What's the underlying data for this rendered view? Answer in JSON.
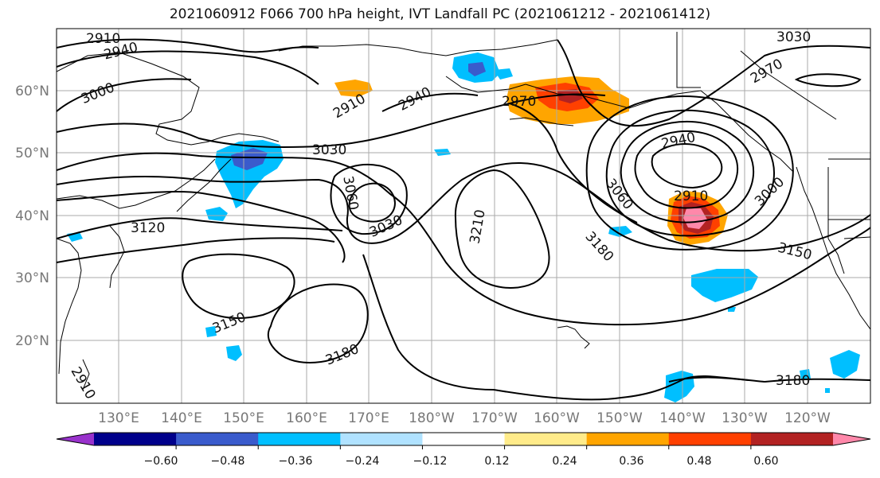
{
  "title": "2021060912 F066 700 hPa height, IVT Landfall PC (2021061212 - 2021061412)",
  "lat_labels": [
    "60°N",
    "50°N",
    "40°N",
    "30°N",
    "20°N"
  ],
  "lon_labels": [
    "130°E",
    "140°E",
    "150°E",
    "160°E",
    "170°E",
    "180°W",
    "170°W",
    "160°W",
    "150°W",
    "140°W",
    "130°W",
    "120°W"
  ],
  "colorbar": {
    "colors": [
      "#9932cc",
      "#00008b",
      "#3a5bcc",
      "#00bfff",
      "#b0e2ff",
      "#ffffff",
      "#ffeb8a",
      "#ffa500",
      "#ff4000",
      "#b22222",
      "#ff88aa"
    ],
    "ticks": [
      "−0.60",
      "−0.48",
      "−0.36",
      "−0.24",
      "−0.12",
      "0.12",
      "0.24",
      "0.36",
      "0.48",
      "0.60"
    ]
  },
  "contour_labels": [
    "2910",
    "2940",
    "3000",
    "2910",
    "2940",
    "2970",
    "3030",
    "2970",
    "2940",
    "2910",
    "3000",
    "3030",
    "3060",
    "3030",
    "3060",
    "3120",
    "3210",
    "3180",
    "3150",
    "3150",
    "3180",
    "3180",
    "2910"
  ]
}
